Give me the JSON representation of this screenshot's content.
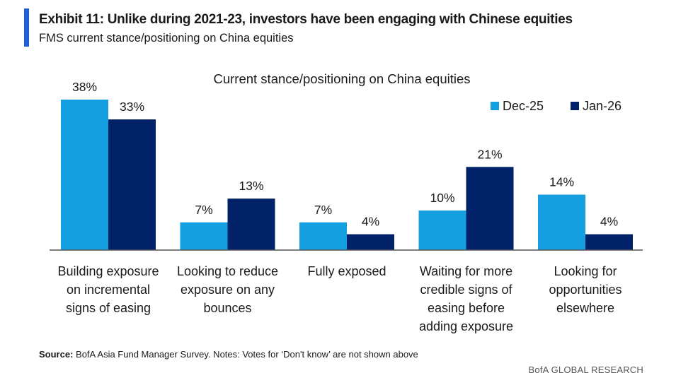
{
  "exhibit": {
    "title": "Exhibit 11: Unlike during 2021-23, investors have been engaging with Chinese equities",
    "subtitle": "FMS current stance/positioning on China equities"
  },
  "chart_data": {
    "type": "bar",
    "title": "Current stance/positioning on China equities",
    "categories": [
      "Building exposure on incremental signs of easing",
      "Looking to reduce exposure on any bounces",
      "Fully exposed",
      "Waiting for more credible signs of easing before adding exposure",
      "Looking for opportunities elsewhere"
    ],
    "category_lines": [
      [
        "Building exposure",
        "on incremental",
        "signs of easing"
      ],
      [
        "Looking to reduce",
        "exposure on any",
        "bounces"
      ],
      [
        "Fully exposed"
      ],
      [
        "Waiting for more",
        "credible signs of",
        "easing before",
        "adding exposure"
      ],
      [
        "Looking for",
        "opportunities",
        "elsewhere"
      ]
    ],
    "series": [
      {
        "name": "Dec-25",
        "color": "#139fe0",
        "values": [
          38,
          7,
          7,
          10,
          14
        ],
        "labels": [
          "38%",
          "7%",
          "7%",
          "10%",
          "14%"
        ]
      },
      {
        "name": "Jan-26",
        "color": "#012169",
        "values": [
          33,
          13,
          4,
          21,
          4
        ],
        "labels": [
          "33%",
          "13%",
          "4%",
          "21%",
          "4%"
        ]
      }
    ],
    "ylim": [
      0,
      38
    ],
    "xlabel": "",
    "ylabel": "",
    "grid": false,
    "legend": "top-right"
  },
  "footer": {
    "source_label": "Source:",
    "source_text": "BofA Asia Fund Manager Survey. Notes: Votes for ‘Don't know’ are not shown above",
    "brand": "BofA GLOBAL RESEARCH"
  },
  "colors": {
    "accent": "#1f5fd6",
    "axis": "#555555"
  }
}
